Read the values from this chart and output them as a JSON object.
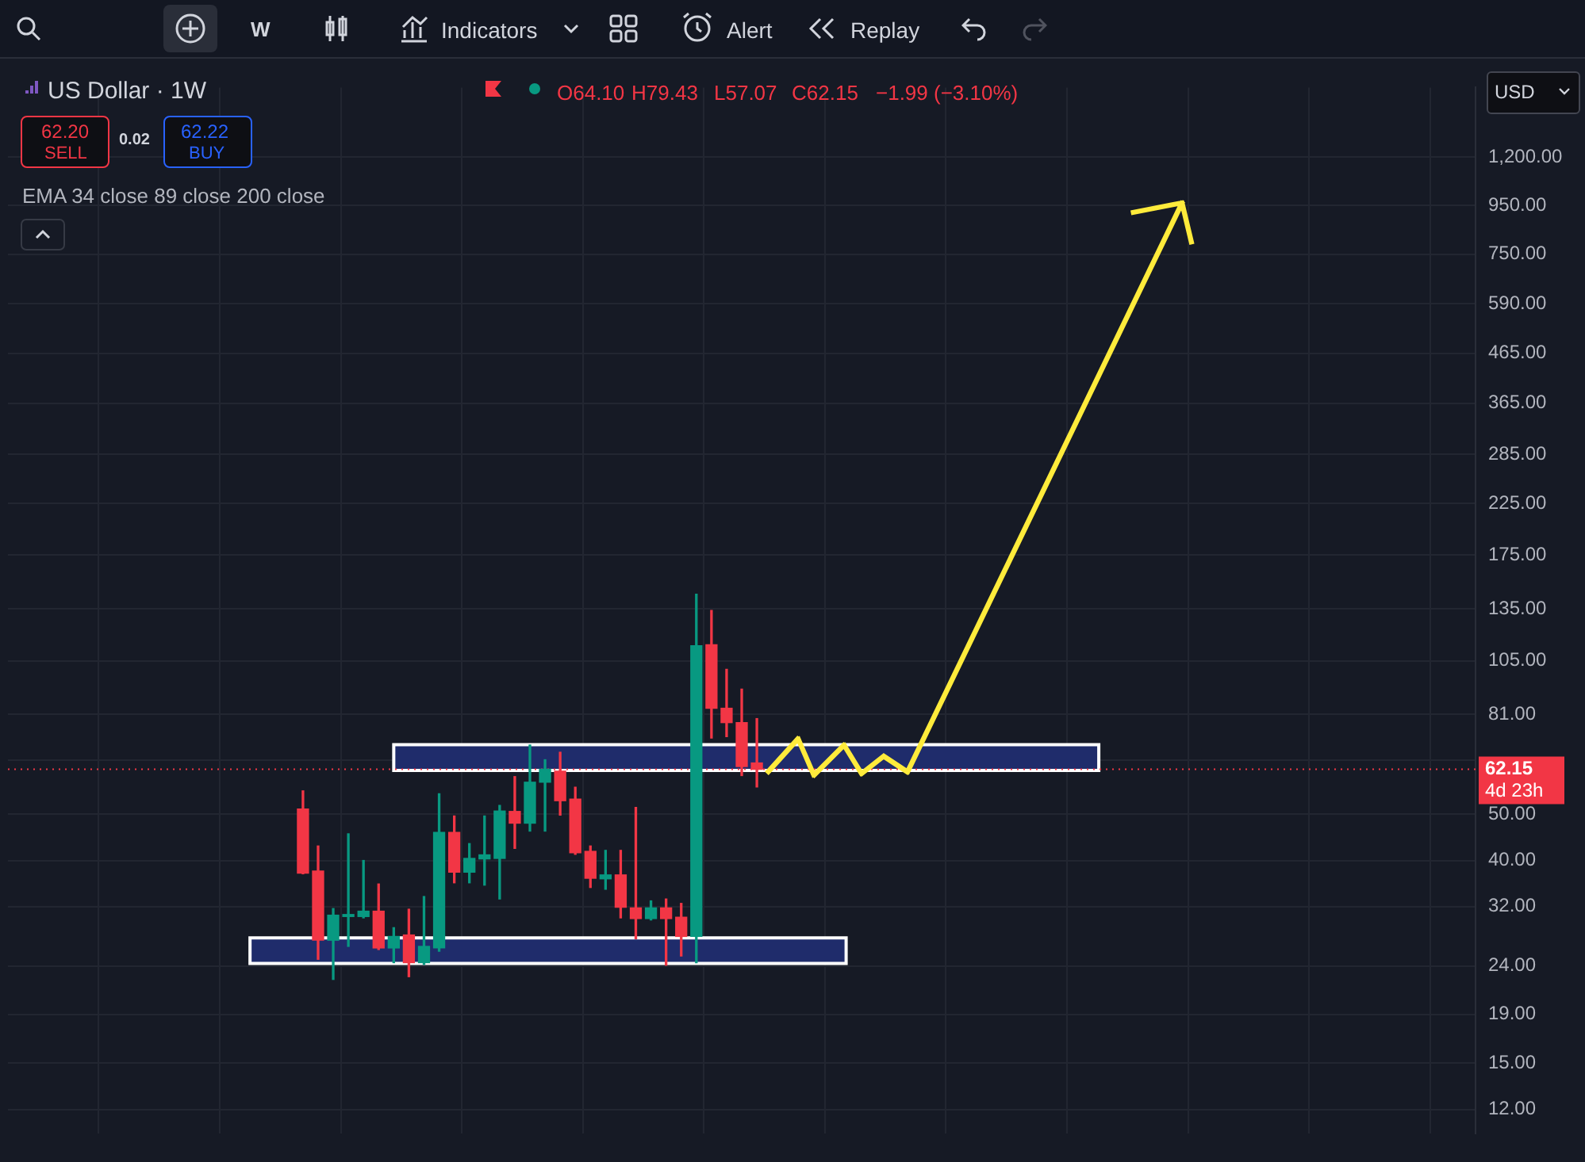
{
  "chart_data": {
    "type": "candlestick",
    "title": "US Dollar · 1W",
    "categories": [
      null,
      null,
      null,
      null,
      null,
      null,
      null,
      null,
      null,
      null,
      null,
      null,
      null,
      null,
      null,
      null,
      null,
      null,
      null,
      null,
      null,
      null,
      null,
      null,
      null,
      null,
      null,
      null,
      null,
      null,
      null,
      null,
      null,
      null,
      null,
      null,
      null,
      null,
      null,
      null,
      null,
      null,
      null,
      null,
      null,
      null,
      null,
      null,
      null,
      null,
      null,
      null,
      null,
      null,
      null,
      null,
      null,
      null,
      null,
      null,
      null,
      null,
      null,
      null,
      null,
      null,
      null,
      null,
      null,
      null,
      null,
      null,
      null,
      null,
      null,
      null,
      null,
      null,
      null,
      null,
      null,
      null,
      null,
      null,
      null,
      null,
      null,
      null,
      null,
      null,
      null,
      null,
      null,
      null,
      null,
      null,
      null
    ],
    "ohlc": [
      null,
      null,
      null,
      null,
      null,
      null,
      null,
      null,
      null,
      null,
      null,
      null,
      null,
      null,
      null,
      null,
      null,
      null,
      null,
      [
        51.3,
        56.0,
        37.5,
        37.6
      ],
      [
        38.0,
        42.9,
        24.8,
        27.2
      ],
      [
        27.2,
        31.7,
        22.5,
        30.7
      ],
      [
        30.5,
        45.5,
        26.4,
        30.8
      ],
      [
        30.5,
        40.0,
        30.3,
        31.3
      ],
      [
        31.3,
        35.7,
        26.0,
        26.2
      ],
      [
        26.2,
        28.9,
        24.4,
        27.7
      ],
      [
        27.9,
        31.6,
        22.8,
        24.4
      ],
      [
        24.4,
        33.6,
        24.2,
        26.4
      ],
      [
        26.2,
        55.2,
        25.8,
        45.8
      ],
      [
        45.8,
        49.6,
        35.9,
        37.8
      ],
      [
        37.8,
        43.4,
        35.9,
        40.4
      ],
      [
        40.3,
        49.6,
        35.5,
        41.1
      ],
      [
        40.4,
        52.2,
        33.2,
        50.8
      ],
      [
        50.7,
        60.0,
        42.4,
        47.9
      ],
      [
        47.9,
        69.9,
        46.1,
        58.4
      ],
      [
        58.4,
        65.1,
        46.1,
        62.2
      ],
      [
        61.6,
        67.5,
        49.8,
        53.4
      ],
      [
        53.8,
        57.0,
        41.2,
        41.5
      ],
      [
        41.8,
        42.9,
        35.1,
        36.7
      ],
      [
        36.6,
        42.0,
        34.8,
        37.3
      ],
      [
        37.3,
        42.0,
        30.3,
        31.9
      ],
      [
        31.8,
        51.7,
        27.4,
        30.2
      ],
      [
        30.2,
        32.9,
        30.0,
        31.8
      ],
      [
        31.8,
        33.2,
        24.1,
        30.2
      ],
      [
        30.4,
        32.5,
        25.2,
        27.7
      ],
      [
        27.7,
        145,
        24.4,
        113
      ],
      [
        113.5,
        134,
        72.3,
        83.5
      ],
      [
        83.5,
        100.8,
        72.8,
        77.9
      ],
      [
        77.9,
        91.6,
        60.3,
        63.0
      ],
      [
        64.1,
        79.43,
        57.07,
        62.15
      ],
      null,
      null,
      null,
      null,
      null,
      null,
      null,
      null,
      null,
      null,
      null,
      null,
      null,
      null,
      null,
      null,
      null,
      null,
      null,
      null,
      null,
      null,
      null,
      null,
      null,
      null,
      null,
      null,
      null,
      null,
      null,
      null,
      null,
      null,
      null,
      null,
      null,
      null,
      null,
      null,
      null,
      null,
      null,
      null,
      null,
      null,
      null
    ],
    "colors": [
      null,
      null,
      null,
      null,
      null,
      null,
      null,
      null,
      null,
      null,
      null,
      null,
      null,
      null,
      null,
      null,
      null,
      null,
      null,
      "#f23645",
      "#f23645",
      "#089981",
      "#089981",
      "#089981",
      "#f23645",
      "#089981",
      "#f23645",
      "#089981",
      "#089981",
      "#f23645",
      "#089981",
      "#089981",
      "#089981",
      "#f23645",
      "#089981",
      "#089981",
      "#f23645",
      "#f23645",
      "#f23645",
      "#089981",
      "#f23645",
      "#f23645",
      "#089981",
      "#f23645",
      "#f23645",
      "#089981",
      "#f23645",
      "#f23645",
      "#f23645",
      "#f23645",
      null,
      null,
      null,
      null,
      null,
      null,
      null,
      null,
      null,
      null,
      null,
      null,
      null,
      null,
      null,
      null,
      null,
      null,
      null,
      null,
      null,
      null,
      null,
      null,
      null,
      null,
      null,
      null,
      null,
      null,
      null,
      null,
      null,
      null,
      null,
      null,
      null,
      null,
      null,
      null,
      null,
      null,
      null,
      null,
      null,
      null,
      null
    ],
    "log": true,
    "ylim": [
      10.7,
      1680
    ],
    "yticks": [
      {
        "value": 12,
        "label": "12.00"
      },
      {
        "value": 15,
        "label": "15.00"
      },
      {
        "value": 19,
        "label": "19.00"
      },
      {
        "value": 24,
        "label": "24.00"
      },
      {
        "value": 32,
        "label": "32.00"
      },
      {
        "value": 40,
        "label": "40.00"
      },
      {
        "value": 50,
        "label": "50.00"
      },
      {
        "value": 65,
        "label": null
      },
      {
        "value": 81,
        "label": "81.00"
      },
      {
        "value": 105,
        "label": "105.00"
      },
      {
        "value": 135,
        "label": "135.00"
      },
      {
        "value": 175,
        "label": "175.00"
      },
      {
        "value": 225,
        "label": "225.00"
      },
      {
        "value": 285,
        "label": "285.00"
      },
      {
        "value": 365,
        "label": "365.00"
      },
      {
        "value": 465,
        "label": "465.00"
      },
      {
        "value": 590,
        "label": "590.00"
      },
      {
        "value": 750,
        "label": "750.00"
      },
      {
        "value": 950,
        "label": "950.00"
      },
      {
        "value": 1200,
        "label": "1,200.00"
      }
    ],
    "grid": true,
    "tick_labels": "y",
    "bands": [
      {
        "axis": "y",
        "from": 24.3,
        "to": 27.5,
        "color": "#1f2c6b"
      },
      {
        "axis": "y",
        "from": 61.8,
        "to": 70.0,
        "color": "#1f2c6b"
      }
    ],
    "ref_lines": [
      {
        "axis": "y",
        "value": 62.15,
        "label": "62.15",
        "color": "#f23645",
        "line_style": "dotted"
      }
    ],
    "annotations": [
      "W",
      "Indicators",
      "Alert",
      "Replay",
      "O64.10",
      "H79.43",
      "L57.07",
      "C62.15",
      "−1.99 (−3.10%)",
      "62.20",
      "SELL",
      "0.02",
      "62.22",
      "BUY",
      "EMA 34 close 89 close 200 close",
      "USD",
      "4d 23h"
    ]
  }
}
